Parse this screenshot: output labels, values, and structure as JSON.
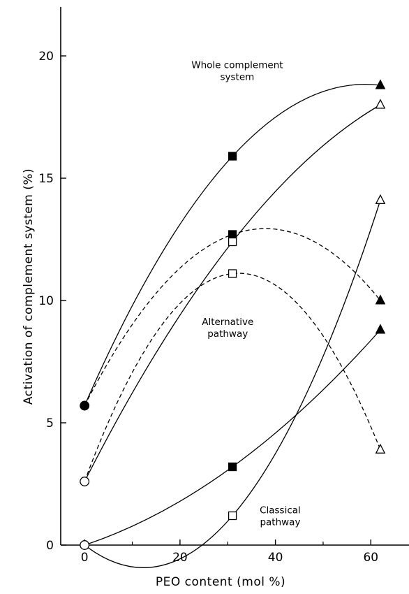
{
  "chart_data": {
    "type": "line",
    "title": "",
    "xlabel": "PEO content (mol %)",
    "ylabel": "Activation of complement system (%)",
    "xlim": [
      -5,
      68
    ],
    "ylim": [
      0,
      22
    ],
    "xticks": [
      0,
      20,
      40,
      60
    ],
    "xtick_labels": [
      "0",
      "20",
      "40",
      "60"
    ],
    "xminor_ticks": [
      10,
      30,
      50
    ],
    "yticks": [
      0,
      5,
      10,
      15,
      20
    ],
    "ytick_labels": [
      "0",
      "5",
      "10",
      "15",
      "20"
    ],
    "grid": false,
    "annotations": [
      {
        "lines": [
          "Whole complement",
          "system"
        ],
        "x": 32,
        "y": 19.5
      },
      {
        "lines": [
          "Alternative",
          "pathway"
        ],
        "x": 30,
        "y": 9.0
      },
      {
        "lines": [
          "Classical",
          "pathway"
        ],
        "x": 41,
        "y": 1.3
      }
    ],
    "series": [
      {
        "line_style": "solid",
        "x": [
          0,
          31,
          62
        ],
        "y": [
          5.7,
          15.9,
          18.8
        ],
        "markers": [
          "filled-circle",
          "filled-square",
          "filled-triangle"
        ]
      },
      {
        "line_style": "dashed",
        "x": [
          0,
          31,
          62
        ],
        "y": [
          5.7,
          12.7,
          10.0
        ],
        "markers": [
          "filled-circle",
          "filled-square",
          "filled-triangle"
        ]
      },
      {
        "line_style": "solid",
        "x": [
          0,
          31,
          62
        ],
        "y": [
          2.6,
          12.4,
          18.0
        ],
        "markers": [
          "open-circle",
          "open-square",
          "open-triangle"
        ]
      },
      {
        "line_style": "dashed",
        "x": [
          0,
          31,
          62
        ],
        "y": [
          2.6,
          11.1,
          3.9
        ],
        "markers": [
          "open-circle",
          "open-square",
          "open-triangle"
        ]
      },
      {
        "line_style": "solid",
        "x": [
          0,
          31,
          62
        ],
        "y": [
          0,
          3.2,
          8.8
        ],
        "markers": [
          "open-circle",
          "filled-square",
          "filled-triangle"
        ]
      },
      {
        "line_style": "solid",
        "x": [
          0,
          31,
          62
        ],
        "y": [
          0,
          1.2,
          14.1
        ],
        "markers": [
          "open-circle",
          "open-square",
          "open-triangle"
        ]
      }
    ]
  }
}
